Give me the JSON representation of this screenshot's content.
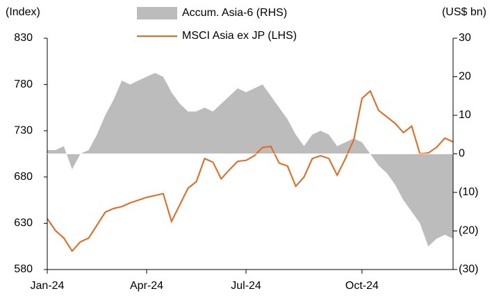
{
  "chart_data": {
    "type": "line",
    "y_label": "(Index)",
    "y2_label": "(US$ bn)",
    "categories": [
      "Jan-24",
      null,
      null,
      null,
      null,
      null,
      null,
      null,
      null,
      null,
      null,
      null,
      "Apr-24",
      null,
      null,
      null,
      null,
      null,
      null,
      null,
      null,
      null,
      null,
      null,
      "Jul-24",
      null,
      null,
      null,
      null,
      null,
      null,
      null,
      null,
      null,
      null,
      null,
      null,
      null,
      "Oct-24",
      null,
      null,
      null,
      null,
      null,
      null,
      null,
      null,
      null,
      null,
      null
    ],
    "series": [
      {
        "name": "Accum. Asia-6 (RHS)",
        "type": "area",
        "axis": "y2",
        "color": "#bcbcbc",
        "values": [
          1,
          1,
          2,
          -4,
          0,
          1,
          5,
          10,
          14,
          19,
          18,
          19,
          20,
          21,
          20,
          16,
          13,
          11,
          11,
          12,
          11,
          13,
          15,
          17,
          16,
          17,
          18,
          15,
          12,
          9,
          5,
          2,
          5,
          6,
          5,
          2,
          3,
          4,
          3,
          0,
          -3,
          -5,
          -8,
          -12,
          -15,
          -18,
          -24,
          -22,
          -21,
          -22
        ]
      },
      {
        "name": "MSCI Asia ex JP (LHS)",
        "type": "line",
        "axis": "y",
        "color": "#e8651a",
        "values": [
          635,
          622,
          614,
          600,
          610,
          614,
          628,
          642,
          646,
          648,
          652,
          655,
          658,
          660,
          662,
          632,
          650,
          668,
          675,
          700,
          696,
          678,
          688,
          697,
          698,
          703,
          712,
          713,
          695,
          692,
          670,
          680,
          700,
          703,
          700,
          682,
          700,
          720,
          765,
          773,
          752,
          745,
          738,
          728,
          735,
          705,
          706,
          712,
          722,
          718
        ]
      }
    ],
    "ylim": [
      580,
      830
    ],
    "yticks": [
      580,
      630,
      680,
      730,
      780,
      830
    ],
    "y2lim": [
      -30,
      30
    ],
    "y2ticks": [
      {
        "value": -30,
        "label": "(30)"
      },
      {
        "value": -20,
        "label": "(20)"
      },
      {
        "value": -10,
        "label": "(10)"
      },
      0,
      10,
      20,
      30
    ],
    "grid": false
  }
}
